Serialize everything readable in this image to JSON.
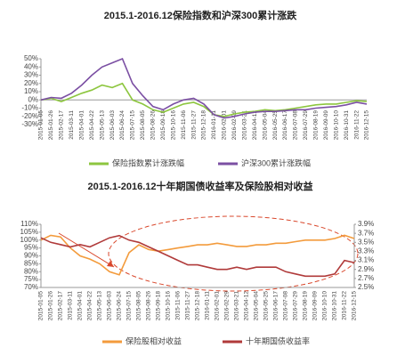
{
  "chart_data": [
    {
      "type": "line",
      "title": "2015.1-2016.12保险指数和沪深300累计涨跌",
      "categories": [
        "2015-01-05",
        "2015-01-26",
        "2015-02-17",
        "2015-03-11",
        "2015-04-01",
        "2015-04-22",
        "2015-05-13",
        "2015-06-03",
        "2015-06-24",
        "2015-07-15",
        "2015-08-05",
        "2015-08-26",
        "2015-09-18",
        "2015-10-16",
        "2015-11-06",
        "2015-11-27",
        "2015-12-18",
        "2016-01-11",
        "2016-02-01",
        "2016-02-29",
        "2016-03-21",
        "2016-04-12",
        "2016-05-04",
        "2016-05-25",
        "2016-06-17",
        "2016-07-08",
        "2016-07-29",
        "2016-08-19",
        "2016-09-09",
        "2016-10-10",
        "2016-10-31",
        "2016-11-22",
        "2016-12-15"
      ],
      "series": [
        {
          "name": "保险指数累计涨跌幅",
          "color": "#8dc63f",
          "values": [
            0,
            2,
            -2,
            3,
            8,
            12,
            18,
            15,
            20,
            0,
            -5,
            -12,
            -15,
            -10,
            -5,
            -3,
            -8,
            -18,
            -20,
            -17,
            -15,
            -14,
            -12,
            -13,
            -12,
            -10,
            -8,
            -6,
            -5,
            -5,
            -3,
            -1,
            -2
          ]
        },
        {
          "name": "沪深300累计涨跌幅",
          "color": "#7b4fa3",
          "values": [
            0,
            3,
            2,
            8,
            18,
            30,
            40,
            45,
            50,
            20,
            5,
            -8,
            -12,
            -5,
            0,
            2,
            -5,
            -18,
            -22,
            -20,
            -17,
            -15,
            -14,
            -14,
            -13,
            -12,
            -12,
            -10,
            -9,
            -8,
            -6,
            -3,
            -5
          ]
        }
      ],
      "ylim": [
        -30,
        50
      ],
      "yticks": [
        {
          "value": 50,
          "label": "50%"
        },
        {
          "value": 40,
          "label": "40%"
        },
        {
          "value": 30,
          "label": "30%"
        },
        {
          "value": 20,
          "label": "20%"
        },
        {
          "value": 10,
          "label": "10%"
        },
        {
          "value": 0,
          "label": "0%"
        },
        {
          "value": -10,
          "label": "-10%"
        },
        {
          "value": -20,
          "label": "-20%"
        },
        {
          "value": -30,
          "label": "-30%"
        }
      ]
    },
    {
      "type": "line",
      "title": "2015.1-2016.12十年期国债收益率及保险股相对收益",
      "categories": [
        "2015-01-05",
        "2015-01-26",
        "2015-02-17",
        "2015-03-11",
        "2015-04-01",
        "2015-04-22",
        "2015-05-13",
        "2015-06-03",
        "2015-06-24",
        "2015-07-15",
        "2015-08-05",
        "2015-08-26",
        "2015-09-18",
        "2015-10-16",
        "2015-11-06",
        "2015-11-27",
        "2015-12-18",
        "2016-01-11",
        "2016-02-01",
        "2016-02-29",
        "2016-03-21",
        "2016-04-12",
        "2016-05-04",
        "2016-05-25",
        "2016-06-17",
        "2016-07-08",
        "2016-07-29",
        "2016-08-19",
        "2016-09-09",
        "2016-10-10",
        "2016-10-31",
        "2016-11-22",
        "2016-12-15"
      ],
      "series": [
        {
          "name": "保险股相对收益",
          "color": "#f39b3c",
          "values": [
            100,
            103,
            102,
            95,
            90,
            88,
            85,
            80,
            78,
            92,
            97,
            94,
            93,
            94,
            95,
            96,
            97,
            97,
            98,
            97,
            96,
            96,
            97,
            97,
            98,
            98,
            99,
            100,
            100,
            100,
            101,
            103,
            101
          ]
        },
        {
          "name": "十年期国债收益率",
          "color": "#b03a3a",
          "axis": "y2",
          "values": [
            3.6,
            3.5,
            3.45,
            3.4,
            3.45,
            3.4,
            3.5,
            3.6,
            3.65,
            3.55,
            3.5,
            3.4,
            3.3,
            3.2,
            3.1,
            3.0,
            3.0,
            2.95,
            2.9,
            2.9,
            2.95,
            2.9,
            2.95,
            2.95,
            2.95,
            2.85,
            2.8,
            2.75,
            2.75,
            2.75,
            2.8,
            3.1,
            3.05
          ]
        }
      ],
      "ylim": [
        70,
        110
      ],
      "yticks": [
        {
          "value": 110,
          "label": "110%"
        },
        {
          "value": 105,
          "label": "105%"
        },
        {
          "value": 100,
          "label": "100%"
        },
        {
          "value": 95,
          "label": "95%"
        },
        {
          "value": 90,
          "label": "90%"
        },
        {
          "value": 85,
          "label": "85%"
        },
        {
          "value": 80,
          "label": "80%"
        },
        {
          "value": 75,
          "label": "75%"
        },
        {
          "value": 70,
          "label": "70%"
        }
      ],
      "y2lim": [
        2.5,
        3.9
      ],
      "y2ticks": [
        {
          "value": 3.9,
          "label": "3.9%"
        },
        {
          "value": 3.7,
          "label": "3.7%"
        },
        {
          "value": 3.5,
          "label": "3.5%"
        },
        {
          "value": 3.3,
          "label": "3.3%"
        },
        {
          "value": 3.1,
          "label": "3.1%"
        },
        {
          "value": 2.9,
          "label": "2.9%"
        },
        {
          "value": 2.7,
          "label": "2.7%"
        },
        {
          "value": 2.5,
          "label": "2.5%"
        }
      ]
    }
  ]
}
